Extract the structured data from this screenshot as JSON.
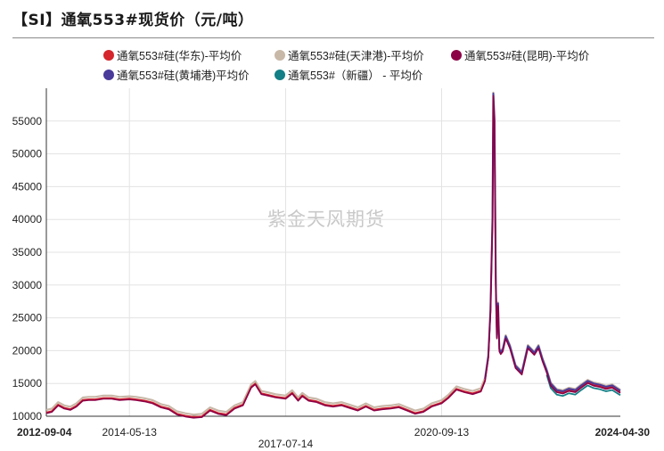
{
  "title": "【SI】通氧553#现货价（元/吨）",
  "watermark": "紫金天风期货",
  "legend": [
    {
      "label": "通氧553#硅(华东)-平均价",
      "color": "#d4262c"
    },
    {
      "label": "通氧553#硅(天津港)-平均价",
      "color": "#c8b8a8"
    },
    {
      "label": "通氧553#硅(昆明)-平均价",
      "color": "#8b0046"
    },
    {
      "label": "通氧553#硅(黄埔港)平均价",
      "color": "#4a3a9a"
    },
    {
      "label": "通氧553#（新疆） - 平均价",
      "color": "#137f86"
    }
  ],
  "chart_data": {
    "type": "line",
    "title": "【SI】通氧553#现货价（元/吨）",
    "xlabel": "",
    "ylabel": "",
    "ylim": [
      10000,
      60000
    ],
    "yticks": [
      10000,
      15000,
      20000,
      25000,
      30000,
      35000,
      40000,
      45000,
      50000,
      55000
    ],
    "xlim": [
      "2012-09-04",
      "2024-04-30"
    ],
    "xticks": [
      {
        "label": "2012-09-04",
        "bold": true
      },
      {
        "label": "2014-05-13",
        "bold": false
      },
      {
        "label": "2017-07-14",
        "bold": false
      },
      {
        "label": "2020-09-13",
        "bold": false
      },
      {
        "label": "2024-04-30",
        "bold": true
      }
    ],
    "grid": true,
    "legend_position": "top",
    "base_series": {
      "x": [
        "2012-09-04",
        "2012-10-15",
        "2012-12-01",
        "2013-01-15",
        "2013-03-01",
        "2013-04-15",
        "2013-06-01",
        "2013-07-15",
        "2013-09-01",
        "2013-11-01",
        "2014-01-01",
        "2014-03-01",
        "2014-05-13",
        "2014-07-01",
        "2014-09-01",
        "2014-11-01",
        "2015-01-01",
        "2015-03-01",
        "2015-05-01",
        "2015-07-01",
        "2015-09-01",
        "2015-11-01",
        "2016-01-01",
        "2016-03-01",
        "2016-05-01",
        "2016-07-01",
        "2016-09-01",
        "2016-11-01",
        "2016-12-01",
        "2017-01-15",
        "2017-03-01",
        "2017-05-01",
        "2017-07-14",
        "2017-09-01",
        "2017-10-15",
        "2017-11-15",
        "2018-01-01",
        "2018-03-01",
        "2018-05-01",
        "2018-07-01",
        "2018-09-01",
        "2018-11-01",
        "2019-01-01",
        "2019-03-01",
        "2019-05-01",
        "2019-07-01",
        "2019-09-01",
        "2019-11-01",
        "2020-01-01",
        "2020-03-01",
        "2020-05-01",
        "2020-07-01",
        "2020-09-13",
        "2020-11-01",
        "2021-01-01",
        "2021-03-01",
        "2021-05-01",
        "2021-07-01",
        "2021-08-01",
        "2021-08-25",
        "2021-09-10",
        "2021-09-25",
        "2021-10-01",
        "2021-10-10",
        "2021-10-20",
        "2021-10-28",
        "2021-11-05",
        "2021-11-15",
        "2021-11-25",
        "2021-12-10",
        "2022-01-01",
        "2022-02-01",
        "2022-03-15",
        "2022-05-01",
        "2022-06-15",
        "2022-08-01",
        "2022-09-01",
        "2022-10-01",
        "2022-11-01",
        "2022-12-01",
        "2023-01-15",
        "2023-03-01",
        "2023-04-15",
        "2023-06-01",
        "2023-07-15",
        "2023-09-01",
        "2023-10-15",
        "2023-12-01",
        "2024-01-15",
        "2024-03-01",
        "2024-04-30"
      ],
      "y": [
        10600,
        10800,
        11800,
        11300,
        11100,
        11600,
        12500,
        12600,
        12600,
        12800,
        12800,
        12600,
        12700,
        12600,
        12400,
        12100,
        11500,
        11200,
        10400,
        10100,
        9900,
        10000,
        11000,
        10500,
        10300,
        11300,
        11800,
        14500,
        15000,
        13500,
        13300,
        13000,
        12800,
        13600,
        12500,
        13200,
        12500,
        12300,
        11800,
        11600,
        11800,
        11400,
        11000,
        11600,
        11000,
        11200,
        11300,
        11500,
        11000,
        10500,
        10800,
        11600,
        12100,
        12900,
        14200,
        13800,
        13500,
        13900,
        15500,
        19000,
        26000,
        40000,
        59000,
        55000,
        30000,
        22000,
        27000,
        20000,
        19600,
        20000,
        22000,
        20500,
        17500,
        16500,
        20500,
        19500,
        20500,
        18500,
        16800,
        14800,
        13800,
        13600,
        14000,
        13800,
        14500,
        15200,
        14800,
        14600,
        14300,
        14500,
        13700
      ]
    },
    "series": [
      {
        "name": "通氧553#硅(华东)-平均价",
        "color": "#d4262c",
        "start": "2012-09-04",
        "end": "2024-04-30"
      },
      {
        "name": "通氧553#硅(天津港)-平均价",
        "color": "#c8b8a8",
        "start": "2012-09-04",
        "end": "2024-04-30"
      },
      {
        "name": "通氧553#硅(昆明)-平均价",
        "color": "#8b0046",
        "start": "2012-09-04",
        "end": "2024-04-30"
      },
      {
        "name": "通氧553#硅(黄埔港)平均价",
        "color": "#4a3a9a",
        "start": "2021-08-01",
        "end": "2024-04-30"
      },
      {
        "name": "通氧553#（新疆） - 平均价",
        "color": "#137f86",
        "start": "2022-11-01",
        "end": "2024-04-30"
      }
    ]
  }
}
